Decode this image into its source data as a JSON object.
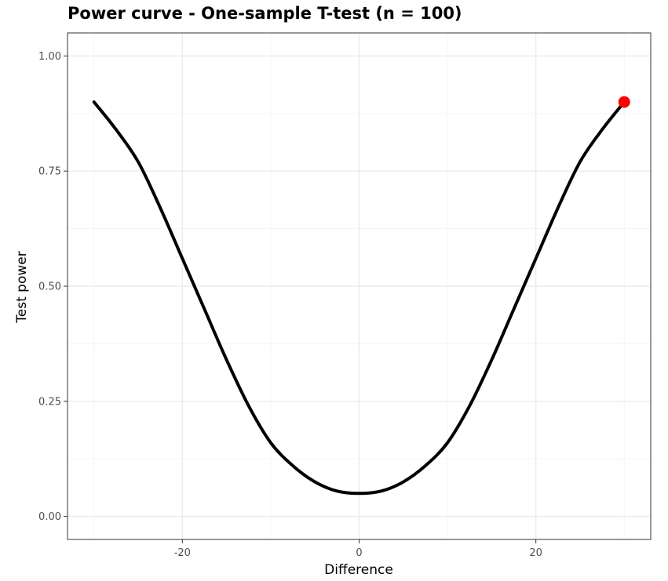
{
  "chart_data": {
    "type": "line",
    "title": "Power curve - One-sample T-test (n =  100)",
    "xlabel": "Difference",
    "ylabel": "Test power",
    "xlim": [
      -33,
      33
    ],
    "ylim": [
      -0.05,
      1.05
    ],
    "x_ticks": [
      -20,
      0,
      20
    ],
    "x_tick_labels": [
      "-20",
      "0",
      "20"
    ],
    "y_ticks": [
      0,
      0.25,
      0.5,
      0.75,
      1
    ],
    "y_tick_labels": [
      "0.00",
      "0.25",
      "0.50",
      "0.75",
      "1.00"
    ],
    "grid": true,
    "series": [
      {
        "x": [
          -30,
          -27.5,
          -25,
          -22.5,
          -20,
          -17.5,
          -15,
          -12.5,
          -10,
          -7.5,
          -5,
          -2.5,
          0,
          2.5,
          5,
          7.5,
          10,
          12.5,
          15,
          17.5,
          20,
          22.5,
          25,
          27.5,
          30
        ],
        "values": [
          0.9,
          0.84,
          0.77,
          0.67,
          0.56,
          0.45,
          0.34,
          0.24,
          0.16,
          0.11,
          0.075,
          0.055,
          0.05,
          0.055,
          0.075,
          0.11,
          0.16,
          0.24,
          0.34,
          0.45,
          0.56,
          0.67,
          0.77,
          0.84,
          0.9
        ],
        "color": "#000000"
      }
    ],
    "highlight_point": {
      "x": 30,
      "y": 0.9,
      "color": "#ff0000"
    },
    "panel_border_color": "#333333",
    "grid_major_color": "#ebebeb",
    "grid_minor_color": "#f5f5f5"
  }
}
